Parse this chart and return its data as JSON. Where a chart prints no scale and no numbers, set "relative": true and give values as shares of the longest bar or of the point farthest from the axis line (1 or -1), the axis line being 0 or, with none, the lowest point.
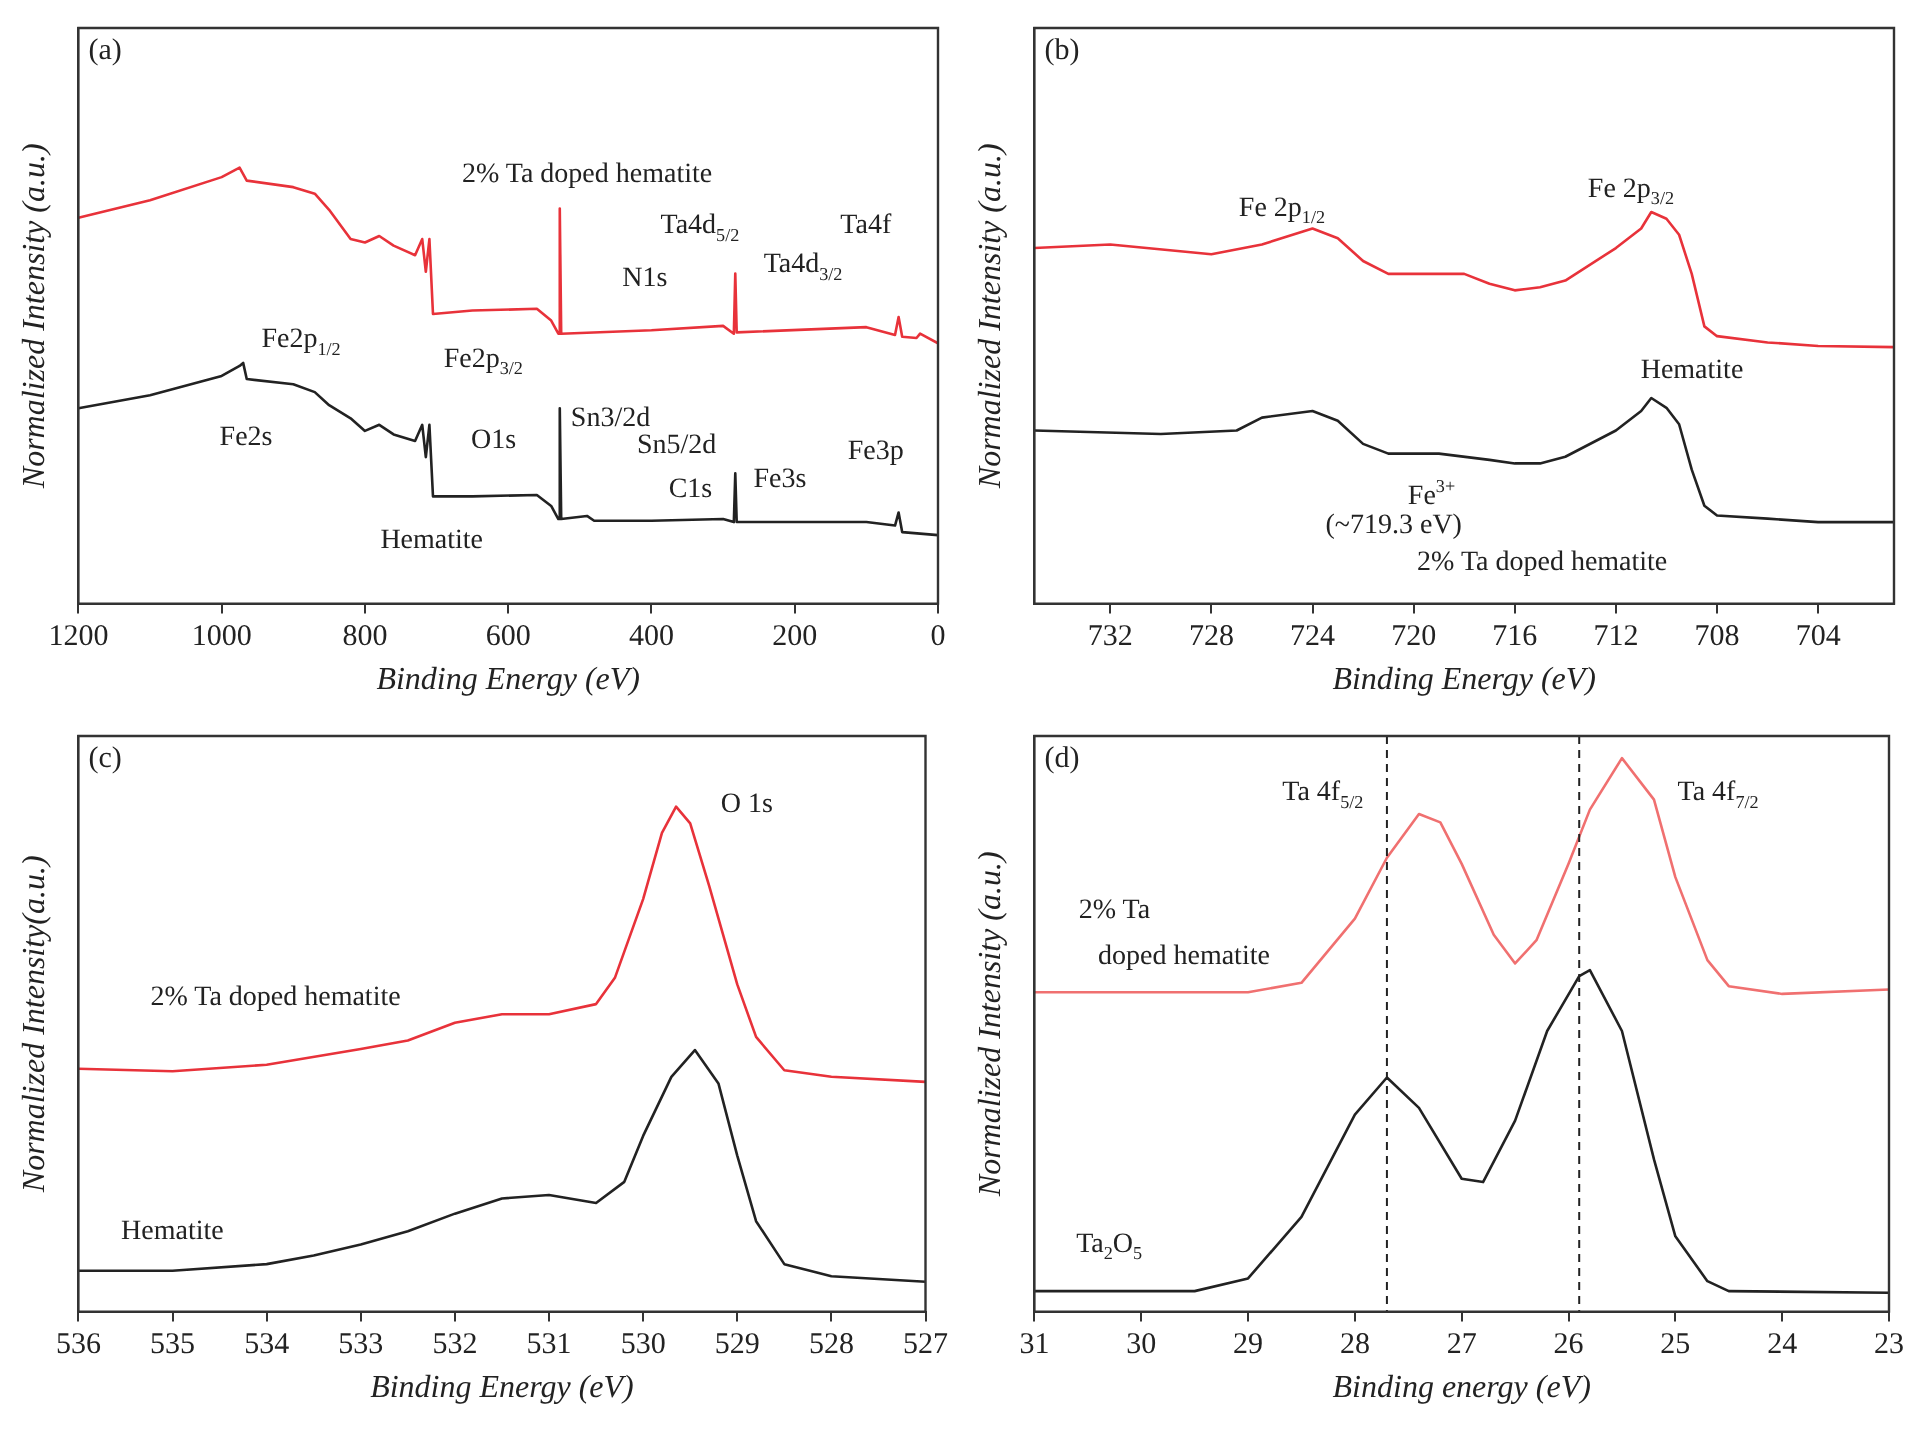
{
  "chart_data": [
    {
      "type": "line",
      "title": "(a)",
      "xlabel": "Binding Energy (eV)",
      "ylabel": "Normalized Intensity (a.u.)",
      "relative": true,
      "xlim": [
        1200,
        0
      ],
      "xticks": [
        1200,
        1000,
        800,
        600,
        400,
        200,
        0
      ],
      "legend": false,
      "grid": false,
      "marker": "none",
      "series": [
        {
          "color": "#e8323a",
          "x": [
            1200,
            1100,
            1000,
            975,
            965,
            900,
            870,
            850,
            820,
            800,
            780,
            760,
            730,
            720,
            715,
            710,
            705,
            650,
            560,
            540,
            530,
            528,
            526,
            400,
            300,
            285,
            283,
            281,
            100,
            60,
            55,
            50,
            30,
            25,
            0
          ],
          "values": [
            0.885,
            0.925,
            0.978,
            1.0,
            0.97,
            0.955,
            0.94,
            0.903,
            0.836,
            0.828,
            0.843,
            0.821,
            0.799,
            0.836,
            0.761,
            0.836,
            0.664,
            0.672,
            0.676,
            0.649,
            0.619,
            0.906,
            0.619,
            0.627,
            0.637,
            0.619,
            0.757,
            0.622,
            0.634,
            0.616,
            0.657,
            0.612,
            0.609,
            0.619,
            0.597
          ]
        },
        {
          "color": "#222222",
          "x": [
            1200,
            1100,
            1000,
            975,
            970,
            965,
            900,
            870,
            850,
            820,
            800,
            780,
            760,
            730,
            720,
            715,
            710,
            705,
            650,
            560,
            540,
            530,
            528,
            526,
            490,
            480,
            400,
            300,
            285,
            283,
            281,
            100,
            60,
            55,
            50,
            0
          ],
          "values": [
            0.448,
            0.478,
            0.522,
            0.545,
            0.552,
            0.515,
            0.503,
            0.485,
            0.455,
            0.425,
            0.396,
            0.41,
            0.388,
            0.373,
            0.41,
            0.336,
            0.41,
            0.246,
            0.246,
            0.249,
            0.224,
            0.194,
            0.448,
            0.194,
            0.201,
            0.19,
            0.19,
            0.194,
            0.187,
            0.299,
            0.187,
            0.187,
            0.179,
            0.209,
            0.164,
            0.157
          ]
        }
      ],
      "annotations": [
        "2% Ta doped hematite",
        "Ta4d$_{5/2}$",
        "Ta4d$_{3/2}$",
        "Ta4f",
        "N1s",
        "Fe2p$_{1/2}$",
        "Fe2p$_{3/2}$",
        "Fe2s",
        "O1s",
        "Sn3/2d",
        "Sn5/2d",
        "C1s",
        "Fe3s",
        "Fe3p",
        "Hematite"
      ]
    },
    {
      "type": "line",
      "title": "(b)",
      "xlabel": "Binding Energy (eV)",
      "ylabel": "Normalized Intensity (a.u.)",
      "relative": true,
      "xlim": [
        735,
        701
      ],
      "xticks": [
        732,
        728,
        724,
        720,
        716,
        712,
        708,
        704
      ],
      "legend": false,
      "grid": false,
      "marker": "none",
      "series": [
        {
          "color": "#e8323a",
          "x": [
            735,
            732,
            728,
            726,
            724,
            723,
            722,
            721,
            719,
            718,
            717,
            716,
            715,
            714,
            712,
            711,
            710.6,
            710,
            709.5,
            709,
            708.5,
            708,
            706,
            704,
            701
          ],
          "values": [
            0.908,
            0.917,
            0.892,
            0.917,
            0.958,
            0.933,
            0.875,
            0.842,
            0.842,
            0.842,
            0.817,
            0.8,
            0.808,
            0.825,
            0.908,
            0.958,
            1.0,
            0.983,
            0.942,
            0.842,
            0.708,
            0.683,
            0.667,
            0.658,
            0.655
          ]
        },
        {
          "color": "#222222",
          "x": [
            735,
            730,
            727,
            726,
            724,
            723,
            722,
            721,
            719,
            717,
            716,
            715,
            714,
            712,
            711,
            710.6,
            710,
            709.5,
            709,
            708.5,
            708,
            706,
            704,
            701
          ],
          "values": [
            0.442,
            0.433,
            0.442,
            0.475,
            0.492,
            0.467,
            0.408,
            0.383,
            0.383,
            0.367,
            0.358,
            0.358,
            0.375,
            0.442,
            0.492,
            0.525,
            0.5,
            0.458,
            0.342,
            0.25,
            0.225,
            0.217,
            0.208,
            0.208
          ]
        }
      ],
      "annotations": [
        "Fe 2p$_{1/2}$",
        "Fe 2p$_{3/2}$",
        "Hematite",
        "Fe$^{3+}$",
        "(~719.3 eV)",
        "2% Ta doped hematite"
      ]
    },
    {
      "type": "line",
      "title": "(c)",
      "xlabel": "Binding Energy (eV)",
      "ylabel": "Normalized Intensity(a.u.)",
      "relative": true,
      "xlim": [
        536,
        527
      ],
      "xticks": [
        536,
        535,
        534,
        533,
        532,
        531,
        530,
        529,
        528,
        527
      ],
      "legend": false,
      "grid": false,
      "marker": "none",
      "series": [
        {
          "color": "#e8323a",
          "x": [
            536,
            535,
            534,
            533,
            532.5,
            532,
            531.5,
            531,
            530.5,
            530.3,
            530,
            529.8,
            529.65,
            529.5,
            529.3,
            529,
            528.8,
            528.5,
            528,
            527
          ],
          "values": [
            0.481,
            0.476,
            0.489,
            0.52,
            0.537,
            0.572,
            0.589,
            0.589,
            0.609,
            0.661,
            0.817,
            0.948,
            1.0,
            0.967,
            0.844,
            0.648,
            0.544,
            0.478,
            0.465,
            0.455
          ]
        },
        {
          "color": "#222222",
          "x": [
            536,
            535,
            534,
            533.5,
            533,
            532.5,
            532,
            531.5,
            531,
            530.5,
            530.2,
            530,
            529.7,
            529.45,
            529.2,
            529,
            528.8,
            528.5,
            528,
            527
          ],
          "values": [
            0.081,
            0.081,
            0.094,
            0.111,
            0.133,
            0.159,
            0.194,
            0.224,
            0.231,
            0.215,
            0.257,
            0.348,
            0.465,
            0.518,
            0.452,
            0.309,
            0.179,
            0.094,
            0.07,
            0.059
          ]
        }
      ],
      "annotations": [
        "O 1s",
        "2% Ta doped hematite",
        "Hematite"
      ]
    },
    {
      "type": "line",
      "title": "(d)",
      "xlabel": "Binding energy (eV)",
      "ylabel": "Normalized Intensity (a.u.)",
      "relative": true,
      "xlim": [
        31,
        23
      ],
      "xticks": [
        31,
        30,
        29,
        28,
        27,
        26,
        25,
        24,
        23
      ],
      "legend": false,
      "grid": false,
      "marker": "none",
      "series": [
        {
          "color": "#f07070",
          "x": [
            31,
            30,
            29,
            28.5,
            28,
            27.7,
            27.4,
            27.2,
            27,
            26.7,
            26.5,
            26.3,
            26,
            25.8,
            25.5,
            25.2,
            25,
            24.7,
            24.5,
            24,
            23
          ],
          "values": [
            0.577,
            0.577,
            0.577,
            0.594,
            0.71,
            0.82,
            0.899,
            0.884,
            0.809,
            0.681,
            0.629,
            0.671,
            0.809,
            0.907,
            1.0,
            0.925,
            0.785,
            0.635,
            0.588,
            0.574,
            0.582
          ]
        },
        {
          "color": "#222222",
          "x": [
            31,
            29.5,
            29,
            28.5,
            28,
            27.7,
            27.4,
            27,
            26.8,
            26.5,
            26.2,
            25.9,
            25.8,
            25.5,
            25.2,
            25,
            24.7,
            24.5,
            23
          ],
          "values": [
            0.037,
            0.037,
            0.06,
            0.171,
            0.356,
            0.423,
            0.368,
            0.24,
            0.234,
            0.345,
            0.507,
            0.606,
            0.617,
            0.507,
            0.275,
            0.136,
            0.055,
            0.037,
            0.034
          ]
        }
      ],
      "ref_lines": [
        {
          "axis": "x",
          "value": 27.7,
          "line_style": "dashed"
        },
        {
          "axis": "x",
          "value": 25.9,
          "line_style": "dashed"
        }
      ],
      "annotations": [
        "Ta 4f$_{5/2}$",
        "Ta 4f$_{7/2}$",
        "2% Ta",
        "doped hematite",
        "Ta$_{2}$O$_{5}$"
      ]
    }
  ]
}
